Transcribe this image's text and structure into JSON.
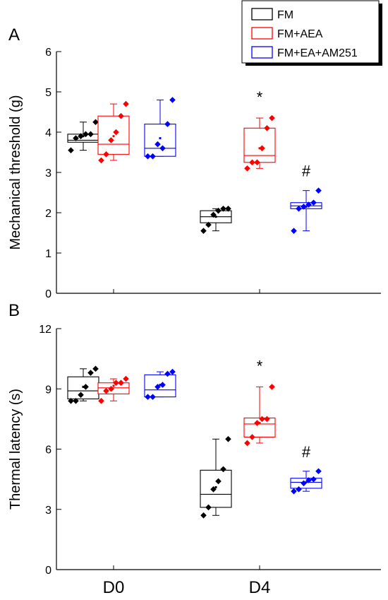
{
  "legend": [
    {
      "label": "FM",
      "color": "#000000"
    },
    {
      "label": "FM+AEA",
      "color": "#ff0000"
    },
    {
      "label": "FM+EA+AM251",
      "color": "#0000ff"
    }
  ],
  "chart_data": [
    {
      "type": "box",
      "panel_label": "A",
      "ylabel": "Mechanical threshold (g)",
      "ylim": [
        0,
        6
      ],
      "yticks": [
        0,
        1,
        2,
        3,
        4,
        5,
        6
      ],
      "categories": [
        "D0",
        "D4"
      ],
      "series": [
        {
          "name": "FM",
          "color": "#000000",
          "groups": [
            {
              "category": "D0",
              "points": [
                3.55,
                3.85,
                3.9,
                3.95,
                3.95,
                4.25
              ],
              "q1": 3.75,
              "median": 3.8,
              "q3": 3.95,
              "whisker_low": 3.55,
              "whisker_high": 4.25,
              "mean": 3.9
            },
            {
              "category": "D4",
              "points": [
                1.55,
                1.7,
                1.95,
                2.05,
                2.1,
                2.1
              ],
              "q1": 1.75,
              "median": 1.9,
              "q3": 2.05,
              "whisker_low": 1.55,
              "whisker_high": 2.1,
              "mean": 1.9
            }
          ]
        },
        {
          "name": "FM+AEA",
          "color": "#ff0000",
          "groups": [
            {
              "category": "D0",
              "points": [
                3.3,
                3.45,
                3.8,
                4.0,
                4.4,
                4.7
              ],
              "q1": 3.45,
              "median": 3.7,
              "q3": 4.4,
              "whisker_low": 3.3,
              "whisker_high": 4.7,
              "mean": 3.9
            },
            {
              "category": "D4",
              "points": [
                3.1,
                3.25,
                3.25,
                3.6,
                4.1,
                4.35
              ],
              "q1": 3.25,
              "median": 3.42,
              "q3": 4.1,
              "whisker_low": 3.1,
              "whisker_high": 4.35,
              "mean": 3.6
            }
          ]
        },
        {
          "name": "FM+EA+AM251",
          "color": "#0000ff",
          "groups": [
            {
              "category": "D0",
              "points": [
                3.4,
                3.4,
                3.7,
                3.6,
                4.2,
                4.8
              ],
              "q1": 3.4,
              "median": 3.6,
              "q3": 4.2,
              "whisker_low": 3.4,
              "whisker_high": 4.8,
              "mean": 3.85
            },
            {
              "category": "D4",
              "points": [
                1.55,
                2.1,
                2.15,
                2.2,
                2.25,
                2.55
              ],
              "q1": 2.1,
              "median": 2.17,
              "q3": 2.25,
              "whisker_low": 1.55,
              "whisker_high": 2.55,
              "mean": 2.15
            }
          ]
        }
      ],
      "annotations": [
        {
          "text": "*",
          "series": "FM+AEA",
          "category": "D4"
        },
        {
          "text": "#",
          "series": "FM+EA+AM251",
          "category": "D4"
        }
      ]
    },
    {
      "type": "box",
      "panel_label": "B",
      "ylabel": "Thermal latency (s)",
      "ylim": [
        0,
        12
      ],
      "yticks": [
        0,
        3,
        6,
        9,
        12
      ],
      "categories": [
        "D0",
        "D4"
      ],
      "series": [
        {
          "name": "FM",
          "color": "#000000",
          "groups": [
            {
              "category": "D0",
              "points": [
                8.4,
                8.4,
                8.7,
                9.1,
                9.8,
                10.0
              ],
              "q1": 8.5,
              "median": 8.9,
              "q3": 9.6,
              "whisker_low": 8.4,
              "whisker_high": 10.0,
              "mean": 9.1
            },
            {
              "category": "D4",
              "points": [
                2.7,
                3.1,
                4.0,
                4.4,
                5.0,
                6.5
              ],
              "q1": 3.1,
              "median": 3.75,
              "q3": 4.95,
              "whisker_low": 2.7,
              "whisker_high": 6.5,
              "mean": 4.1
            }
          ]
        },
        {
          "name": "FM+AEA",
          "color": "#ff0000",
          "groups": [
            {
              "category": "D0",
              "points": [
                8.4,
                8.9,
                9.0,
                9.3,
                9.3,
                9.5
              ],
              "q1": 8.75,
              "median": 9.05,
              "q3": 9.3,
              "whisker_low": 8.4,
              "whisker_high": 9.5,
              "mean": 9.15
            },
            {
              "category": "D4",
              "points": [
                6.3,
                6.6,
                7.3,
                7.5,
                7.5,
                9.1
              ],
              "q1": 6.6,
              "median": 7.25,
              "q3": 7.55,
              "whisker_low": 6.3,
              "whisker_high": 9.1,
              "mean": 7.3
            }
          ]
        },
        {
          "name": "FM+EA+AM251",
          "color": "#0000ff",
          "groups": [
            {
              "category": "D0",
              "points": [
                8.6,
                8.6,
                9.1,
                9.2,
                9.75,
                9.85
              ],
              "q1": 8.6,
              "median": 8.95,
              "q3": 9.7,
              "whisker_low": 8.6,
              "whisker_high": 9.85,
              "mean": 9.2
            },
            {
              "category": "D4",
              "points": [
                3.9,
                4.0,
                4.3,
                4.45,
                4.5,
                4.9
              ],
              "q1": 4.05,
              "median": 4.35,
              "q3": 4.55,
              "whisker_low": 3.9,
              "whisker_high": 4.9,
              "mean": 4.35
            }
          ]
        }
      ],
      "annotations": [
        {
          "text": "*",
          "series": "FM+AEA",
          "category": "D4"
        },
        {
          "text": "#",
          "series": "FM+EA+AM251",
          "category": "D4"
        }
      ]
    }
  ]
}
